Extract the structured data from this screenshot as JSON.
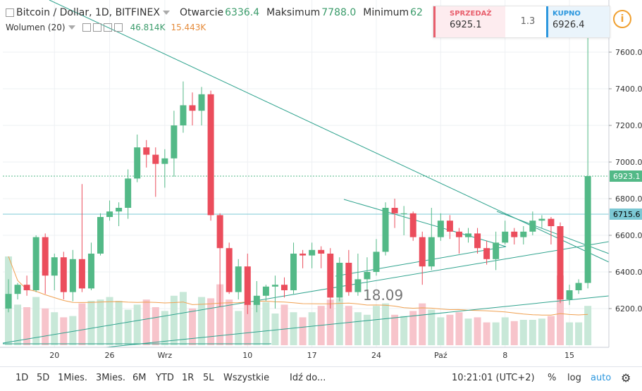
{
  "header": {
    "title": "Bitcoin / Dollar, 1D, BITFINEX",
    "open_label": "Otwarcie",
    "open_value": "6336.4",
    "high_label": "Maksimum",
    "high_value": "7788.0",
    "low_label": "Minimum",
    "low_value": "62",
    "volume_label": "Wolumen (20)",
    "volume_value": "46.814K",
    "volume_ma": "15.443K"
  },
  "trade_panel": {
    "sell_label": "SPRZEDAŻ",
    "sell_price": "6925.1",
    "spread": "1.3",
    "buy_label": "KUPNO",
    "buy_price": "6926.4",
    "info_icon": "i"
  },
  "bottom_bar": {
    "ranges": [
      "1D",
      "5D",
      "1Mies.",
      "3Mies.",
      "6M",
      "YTD",
      "1R",
      "5L",
      "Wszystkie"
    ],
    "goto": "Idź do...",
    "time": "10:21:01 (UTC+2)",
    "percent": "%",
    "log": "log",
    "auto": "auto",
    "settings_icon": "gear-icon"
  },
  "chart_data": {
    "type": "candlestick",
    "y_ticks": [
      "6200.0",
      "6400.0",
      "6600.0",
      "6800.0",
      "7000.0",
      "7200.0",
      "7400.0",
      "7600.0"
    ],
    "ylim": [
      6020,
      7700
    ],
    "x_ticks": [
      {
        "label": "20",
        "index": 5
      },
      {
        "label": "26",
        "index": 11
      },
      {
        "label": "Wrz",
        "index": 17
      },
      {
        "label": "10",
        "index": 26
      },
      {
        "label": "17",
        "index": 33
      },
      {
        "label": "24",
        "index": 40
      },
      {
        "label": "Paź",
        "index": 47
      },
      {
        "label": "8",
        "index": 54
      },
      {
        "label": "15",
        "index": 61
      }
    ],
    "price_labels": [
      {
        "label": "6923.1",
        "value": 6923.1,
        "color": "#53b987"
      },
      {
        "label": "6715.6",
        "value": 6715.6,
        "color": "#7cc8d4"
      }
    ],
    "annotation": "18.09",
    "colors": {
      "up": "#53b987",
      "down": "#eb4d5c",
      "up_vol": "#c8e8d8",
      "down_vol": "#f7c4cb",
      "trend": "#2fa38e",
      "ma": "#f0a050"
    },
    "candles": [
      {
        "o": 6200,
        "h": 6360,
        "l": 6180,
        "c": 6280
      },
      {
        "o": 6280,
        "h": 6340,
        "l": 6250,
        "c": 6330
      },
      {
        "o": 6330,
        "h": 6380,
        "l": 6270,
        "c": 6300
      },
      {
        "o": 6300,
        "h": 6600,
        "l": 6290,
        "c": 6590
      },
      {
        "o": 6590,
        "h": 6610,
        "l": 6280,
        "c": 6380
      },
      {
        "o": 6380,
        "h": 6500,
        "l": 6300,
        "c": 6480
      },
      {
        "o": 6480,
        "h": 6510,
        "l": 6250,
        "c": 6290
      },
      {
        "o": 6290,
        "h": 6520,
        "l": 6240,
        "c": 6470
      },
      {
        "o": 6470,
        "h": 6880,
        "l": 6290,
        "c": 6310
      },
      {
        "o": 6310,
        "h": 6560,
        "l": 6300,
        "c": 6500
      },
      {
        "o": 6500,
        "h": 6720,
        "l": 6490,
        "c": 6700
      },
      {
        "o": 6700,
        "h": 6790,
        "l": 6680,
        "c": 6730
      },
      {
        "o": 6730,
        "h": 6780,
        "l": 6650,
        "c": 6750
      },
      {
        "o": 6750,
        "h": 6960,
        "l": 6690,
        "c": 6910
      },
      {
        "o": 6910,
        "h": 7150,
        "l": 6890,
        "c": 7080
      },
      {
        "o": 7080,
        "h": 7120,
        "l": 6970,
        "c": 7040
      },
      {
        "o": 7040,
        "h": 7080,
        "l": 6810,
        "c": 6990
      },
      {
        "o": 6990,
        "h": 7070,
        "l": 6860,
        "c": 7020
      },
      {
        "o": 7020,
        "h": 7280,
        "l": 6920,
        "c": 7200
      },
      {
        "o": 7200,
        "h": 7440,
        "l": 7160,
        "c": 7310
      },
      {
        "o": 7310,
        "h": 7380,
        "l": 7200,
        "c": 7280
      },
      {
        "o": 7280,
        "h": 7410,
        "l": 7200,
        "c": 7370
      },
      {
        "o": 7370,
        "h": 7390,
        "l": 6680,
        "c": 6710
      },
      {
        "o": 6710,
        "h": 6720,
        "l": 6210,
        "c": 6530
      },
      {
        "o": 6530,
        "h": 6560,
        "l": 6280,
        "c": 6290
      },
      {
        "o": 6290,
        "h": 6470,
        "l": 6250,
        "c": 6430
      },
      {
        "o": 6430,
        "h": 6500,
        "l": 6170,
        "c": 6220
      },
      {
        "o": 6220,
        "h": 6350,
        "l": 6180,
        "c": 6270
      },
      {
        "o": 6270,
        "h": 6330,
        "l": 6240,
        "c": 6320
      },
      {
        "o": 6320,
        "h": 6380,
        "l": 6200,
        "c": 6330
      },
      {
        "o": 6330,
        "h": 6370,
        "l": 6260,
        "c": 6300
      },
      {
        "o": 6300,
        "h": 6560,
        "l": 6280,
        "c": 6500
      },
      {
        "o": 6500,
        "h": 6520,
        "l": 6420,
        "c": 6490
      },
      {
        "o": 6490,
        "h": 6560,
        "l": 6420,
        "c": 6520
      },
      {
        "o": 6520,
        "h": 6540,
        "l": 6420,
        "c": 6500
      },
      {
        "o": 6500,
        "h": 6530,
        "l": 6200,
        "c": 6260
      },
      {
        "o": 6260,
        "h": 6480,
        "l": 6240,
        "c": 6450
      },
      {
        "o": 6450,
        "h": 6520,
        "l": 6270,
        "c": 6290
      },
      {
        "o": 6290,
        "h": 6500,
        "l": 6270,
        "c": 6360
      },
      {
        "o": 6360,
        "h": 6480,
        "l": 6260,
        "c": 6400
      },
      {
        "o": 6400,
        "h": 6580,
        "l": 6380,
        "c": 6510
      },
      {
        "o": 6510,
        "h": 6780,
        "l": 6490,
        "c": 6750
      },
      {
        "o": 6750,
        "h": 6800,
        "l": 6640,
        "c": 6720
      },
      {
        "o": 6720,
        "h": 6760,
        "l": 6600,
        "c": 6720
      },
      {
        "o": 6720,
        "h": 6730,
        "l": 6570,
        "c": 6590
      },
      {
        "o": 6590,
        "h": 6620,
        "l": 6330,
        "c": 6430
      },
      {
        "o": 6430,
        "h": 6750,
        "l": 6410,
        "c": 6590
      },
      {
        "o": 6590,
        "h": 6720,
        "l": 6570,
        "c": 6680
      },
      {
        "o": 6680,
        "h": 6710,
        "l": 6580,
        "c": 6620
      },
      {
        "o": 6620,
        "h": 6640,
        "l": 6500,
        "c": 6590
      },
      {
        "o": 6590,
        "h": 6640,
        "l": 6560,
        "c": 6610
      },
      {
        "o": 6610,
        "h": 6640,
        "l": 6500,
        "c": 6530
      },
      {
        "o": 6530,
        "h": 6570,
        "l": 6440,
        "c": 6470
      },
      {
        "o": 6470,
        "h": 6620,
        "l": 6410,
        "c": 6560
      },
      {
        "o": 6560,
        "h": 6680,
        "l": 6550,
        "c": 6620
      },
      {
        "o": 6620,
        "h": 6640,
        "l": 6550,
        "c": 6590
      },
      {
        "o": 6590,
        "h": 6650,
        "l": 6550,
        "c": 6620
      },
      {
        "o": 6620,
        "h": 6730,
        "l": 6600,
        "c": 6680
      },
      {
        "o": 6680,
        "h": 6710,
        "l": 6640,
        "c": 6690
      },
      {
        "o": 6690,
        "h": 6700,
        "l": 6550,
        "c": 6650
      },
      {
        "o": 6650,
        "h": 6670,
        "l": 6230,
        "c": 6250
      },
      {
        "o": 6250,
        "h": 6330,
        "l": 6220,
        "c": 6300
      },
      {
        "o": 6300,
        "h": 6360,
        "l": 6280,
        "c": 6340
      },
      {
        "o": 6340,
        "h": 7790,
        "l": 6310,
        "c": 6923.1
      }
    ],
    "volumes": [
      70,
      32,
      30,
      38,
      29,
      26,
      22,
      23,
      33,
      35,
      36,
      38,
      35,
      28,
      32,
      36,
      30,
      27,
      39,
      42,
      29,
      38,
      37,
      48,
      36,
      27,
      33,
      35,
      34,
      25,
      32,
      26,
      22,
      26,
      31,
      36,
      37,
      31,
      26,
      24,
      31,
      33,
      24,
      23,
      27,
      33,
      28,
      22,
      24,
      26,
      21,
      22,
      18,
      18,
      22,
      19,
      20,
      20,
      21,
      23,
      55,
      18,
      18,
      31
    ]
  }
}
